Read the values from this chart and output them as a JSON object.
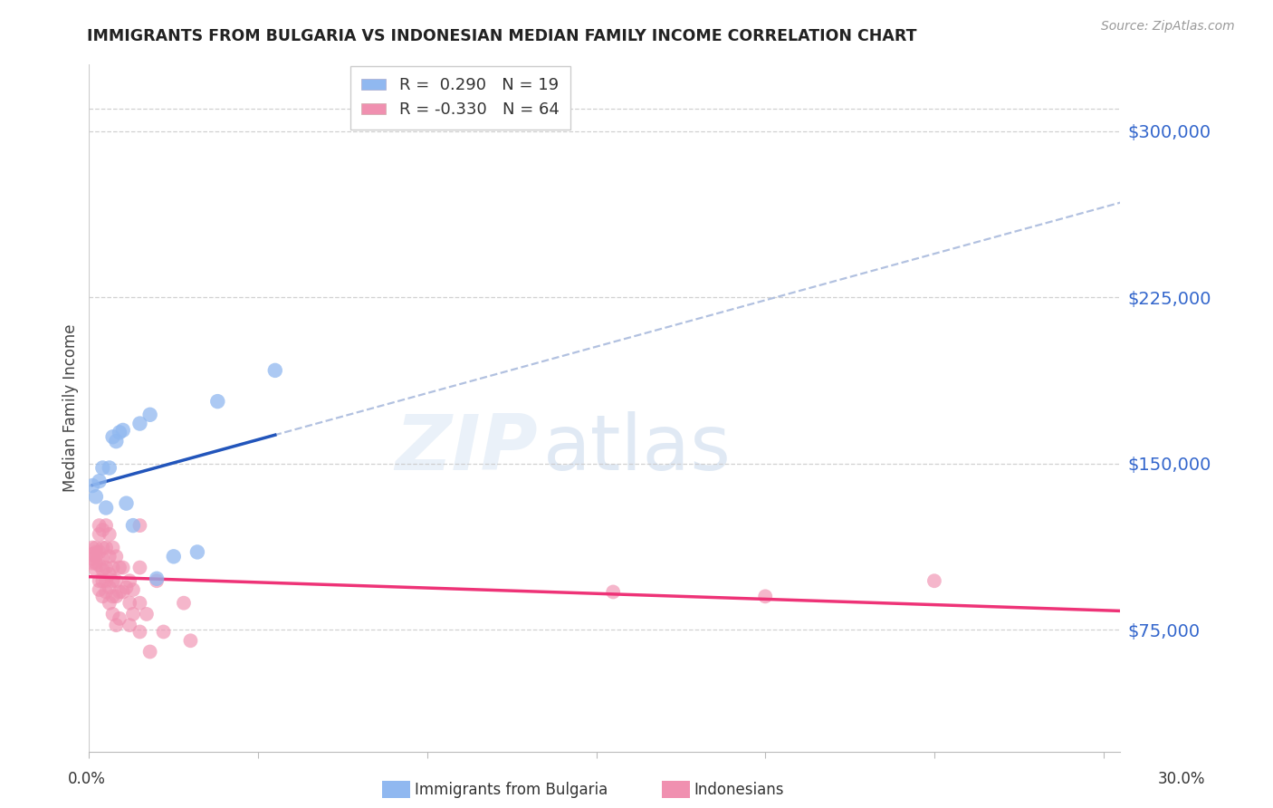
{
  "title": "IMMIGRANTS FROM BULGARIA VS INDONESIAN MEDIAN FAMILY INCOME CORRELATION CHART",
  "source": "Source: ZipAtlas.com",
  "ylabel": "Median Family Income",
  "ytick_values": [
    75000,
    150000,
    225000,
    300000
  ],
  "ylim": [
    20000,
    330000
  ],
  "xlim": [
    0.0,
    0.305
  ],
  "watermark_zip": "ZIP",
  "watermark_atlas": "atlas",
  "bg_color": "#ffffff",
  "grid_color": "#cccccc",
  "bulgaria_color": "#90b8f0",
  "indonesia_color": "#f090b0",
  "bulgaria_line_color": "#2255bb",
  "indonesia_line_color": "#ee3377",
  "dashed_line_color": "#aabbdd",
  "bulgaria_R": 0.29,
  "bulgaria_N": 19,
  "indonesia_R": -0.33,
  "indonesia_N": 64,
  "bulgaria_scatter": [
    [
      0.001,
      140000
    ],
    [
      0.002,
      135000
    ],
    [
      0.003,
      142000
    ],
    [
      0.004,
      148000
    ],
    [
      0.005,
      130000
    ],
    [
      0.006,
      148000
    ],
    [
      0.007,
      162000
    ],
    [
      0.008,
      160000
    ],
    [
      0.009,
      164000
    ],
    [
      0.01,
      165000
    ],
    [
      0.011,
      132000
    ],
    [
      0.013,
      122000
    ],
    [
      0.015,
      168000
    ],
    [
      0.018,
      172000
    ],
    [
      0.02,
      98000
    ],
    [
      0.025,
      108000
    ],
    [
      0.032,
      110000
    ],
    [
      0.038,
      178000
    ],
    [
      0.055,
      192000
    ]
  ],
  "indonesia_scatter": [
    [
      0.001,
      112000
    ],
    [
      0.001,
      109000
    ],
    [
      0.001,
      107000
    ],
    [
      0.001,
      105000
    ],
    [
      0.002,
      112000
    ],
    [
      0.002,
      110000
    ],
    [
      0.002,
      108000
    ],
    [
      0.002,
      105000
    ],
    [
      0.002,
      102000
    ],
    [
      0.003,
      122000
    ],
    [
      0.003,
      118000
    ],
    [
      0.003,
      110000
    ],
    [
      0.003,
      104000
    ],
    [
      0.003,
      97000
    ],
    [
      0.003,
      93000
    ],
    [
      0.004,
      120000
    ],
    [
      0.004,
      112000
    ],
    [
      0.004,
      107000
    ],
    [
      0.004,
      102000
    ],
    [
      0.004,
      97000
    ],
    [
      0.004,
      90000
    ],
    [
      0.005,
      122000
    ],
    [
      0.005,
      112000
    ],
    [
      0.005,
      103000
    ],
    [
      0.005,
      97000
    ],
    [
      0.005,
      92000
    ],
    [
      0.006,
      118000
    ],
    [
      0.006,
      108000
    ],
    [
      0.006,
      100000
    ],
    [
      0.006,
      94000
    ],
    [
      0.006,
      87000
    ],
    [
      0.007,
      112000
    ],
    [
      0.007,
      103000
    ],
    [
      0.007,
      97000
    ],
    [
      0.007,
      90000
    ],
    [
      0.007,
      82000
    ],
    [
      0.008,
      108000
    ],
    [
      0.008,
      97000
    ],
    [
      0.008,
      90000
    ],
    [
      0.008,
      77000
    ],
    [
      0.009,
      103000
    ],
    [
      0.009,
      92000
    ],
    [
      0.009,
      80000
    ],
    [
      0.01,
      103000
    ],
    [
      0.01,
      92000
    ],
    [
      0.011,
      94000
    ],
    [
      0.012,
      97000
    ],
    [
      0.012,
      87000
    ],
    [
      0.012,
      77000
    ],
    [
      0.013,
      93000
    ],
    [
      0.013,
      82000
    ],
    [
      0.015,
      122000
    ],
    [
      0.015,
      103000
    ],
    [
      0.015,
      87000
    ],
    [
      0.015,
      74000
    ],
    [
      0.017,
      82000
    ],
    [
      0.018,
      65000
    ],
    [
      0.02,
      97000
    ],
    [
      0.022,
      74000
    ],
    [
      0.028,
      87000
    ],
    [
      0.03,
      70000
    ],
    [
      0.155,
      92000
    ],
    [
      0.2,
      90000
    ],
    [
      0.25,
      97000
    ]
  ]
}
